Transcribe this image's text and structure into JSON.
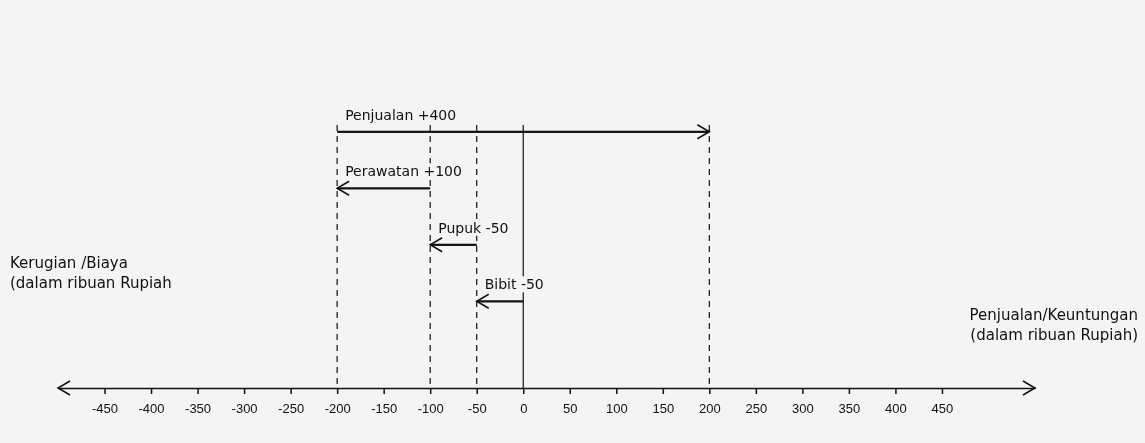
{
  "chart_data": {
    "type": "bar",
    "orientation": "horizontal",
    "categories": [
      "Penjualan +400",
      "Perawatan +100",
      "Pupuk -50",
      "Bibit -50"
    ],
    "values": [
      400,
      -100,
      -50,
      -50
    ],
    "base": [
      -200,
      -100,
      -50,
      0
    ],
    "color": "#111111",
    "xlim": [
      -500,
      550
    ],
    "xticks": [
      -450,
      -400,
      -350,
      -300,
      -250,
      -200,
      -150,
      -100,
      -50,
      0,
      50,
      100,
      150,
      200,
      250,
      300,
      350,
      400,
      450
    ],
    "xlabel": "Penjualan/Keuntungan (dalam ribuan Rupiah)",
    "annotations": [
      "Kerugian /Biaya (dalam ribuan Rupiah"
    ],
    "ref_lines": [
      {
        "axis": "x",
        "value": -200,
        "line_style": "dashed"
      },
      {
        "axis": "x",
        "value": -100,
        "line_style": "dashed"
      },
      {
        "axis": "x",
        "value": -50,
        "line_style": "dashed"
      },
      {
        "axis": "x",
        "value": 0,
        "line_style": "solid"
      },
      {
        "axis": "x",
        "value": 200,
        "line_style": "dashed"
      }
    ],
    "tick_labels": "x",
    "grid": false
  }
}
